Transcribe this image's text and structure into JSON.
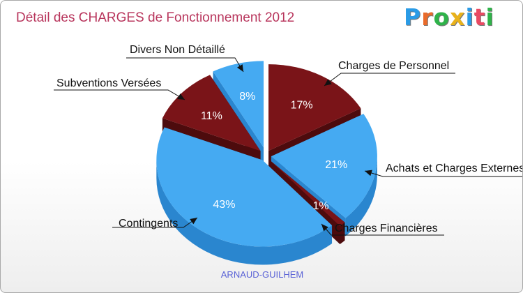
{
  "header": {
    "title": "Détail des CHARGES de Fonctionnement 2012"
  },
  "logo": {
    "text": "Proxiti",
    "letters": [
      {
        "ch": "P",
        "color": "#2a9be6"
      },
      {
        "ch": "r",
        "color": "#e96b2b"
      },
      {
        "ch": "o",
        "color": "#2fb34a"
      },
      {
        "ch": "x",
        "color": "#e9b21b"
      },
      {
        "ch": "i",
        "color": "#2a9be6"
      },
      {
        "ch": "t",
        "color": "#e94a63"
      },
      {
        "ch": "i",
        "color": "#2fb34a"
      }
    ]
  },
  "footer": {
    "commune": "ARNAUD-GUILHEM"
  },
  "colors": {
    "blue": "#45aaf2",
    "blue_side": "#2a86cf",
    "red": "#7a1418",
    "red_side": "#4d0b0d",
    "title": "#b8355c"
  },
  "chart_data": {
    "type": "pie",
    "style": "3d-exploded",
    "title": "Détail des CHARGES de Fonctionnement 2012",
    "subtitle": "ARNAUD-GUILHEM",
    "unit": "%",
    "slices": [
      {
        "label": "Charges de Personnel",
        "value": 17,
        "pct_label": "17%",
        "color": "red"
      },
      {
        "label": "Achats et Charges Externes",
        "value": 21,
        "pct_label": "21%",
        "color": "blue"
      },
      {
        "label": "Charges Financières",
        "value": 1,
        "pct_label": "1%",
        "color": "red"
      },
      {
        "label": "Contingents",
        "value": 43,
        "pct_label": "43%",
        "color": "blue"
      },
      {
        "label": "Subventions Versées",
        "value": 11,
        "pct_label": "11%",
        "color": "red"
      },
      {
        "label": "Divers Non Détaillé",
        "value": 8,
        "pct_label": "8%",
        "color": "blue"
      }
    ]
  }
}
